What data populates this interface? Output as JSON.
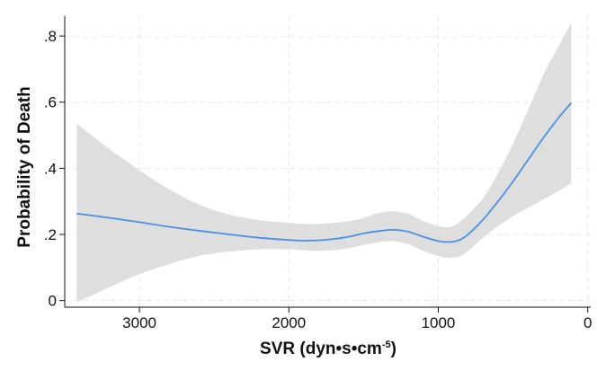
{
  "chart_data": {
    "type": "line",
    "title": "",
    "xlabel": "SVR (dyn•s•cm",
    "xlabel_superscript": "-5",
    "xlabel_suffix": ")",
    "ylabel": "Probability of Death",
    "xlim": [
      3500,
      -20
    ],
    "x_reversed": true,
    "ylim": [
      -0.02,
      0.86
    ],
    "xticks": [
      3000,
      2000,
      1000,
      0
    ],
    "xtick_labels": [
      "3000",
      "2000",
      "1000",
      "0"
    ],
    "yticks": [
      0,
      0.2,
      0.4,
      0.6,
      0.8
    ],
    "ytick_labels": [
      "0",
      ".2",
      ".4",
      ".6",
      ".8"
    ],
    "grid": true,
    "legend": "none",
    "colors": {
      "line": "#4a90e2",
      "band": "#dedede",
      "grid": "#e8e8e8"
    },
    "series": [
      {
        "x": [
          3420,
          3200,
          3000,
          2800,
          2600,
          2400,
          2200,
          2000,
          1900,
          1800,
          1700,
          1600,
          1500,
          1400,
          1300,
          1200,
          1100,
          1000,
          950,
          900,
          850,
          800,
          700,
          600,
          500,
          400,
          300,
          200,
          110
        ],
        "y": [
          0.263,
          0.25,
          0.237,
          0.223,
          0.211,
          0.2,
          0.19,
          0.183,
          0.181,
          0.182,
          0.186,
          0.193,
          0.203,
          0.21,
          0.214,
          0.208,
          0.193,
          0.18,
          0.177,
          0.178,
          0.185,
          0.2,
          0.245,
          0.3,
          0.36,
          0.425,
          0.49,
          0.55,
          0.598
        ],
        "lower": [
          -0.005,
          0.04,
          0.08,
          0.11,
          0.135,
          0.148,
          0.155,
          0.155,
          0.152,
          0.15,
          0.152,
          0.158,
          0.168,
          0.176,
          0.18,
          0.17,
          0.15,
          0.135,
          0.13,
          0.13,
          0.135,
          0.15,
          0.19,
          0.225,
          0.255,
          0.28,
          0.305,
          0.33,
          0.355
        ],
        "upper": [
          0.535,
          0.458,
          0.394,
          0.336,
          0.29,
          0.26,
          0.243,
          0.235,
          0.232,
          0.232,
          0.235,
          0.24,
          0.25,
          0.265,
          0.27,
          0.262,
          0.24,
          0.225,
          0.222,
          0.225,
          0.24,
          0.26,
          0.31,
          0.385,
          0.475,
          0.575,
          0.68,
          0.765,
          0.84
        ]
      }
    ]
  }
}
